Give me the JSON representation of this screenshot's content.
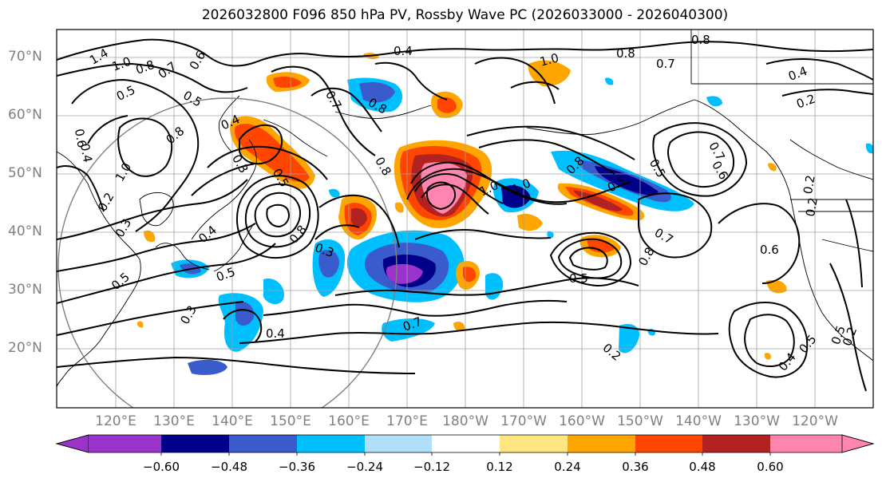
{
  "title": "2026032800 F096 850 hPa PV, Rossby Wave PC (2026033000 - 2026040300)",
  "lat_labels": [
    "70°N",
    "60°N",
    "50°N",
    "40°N",
    "30°N",
    "20°N"
  ],
  "lon_labels": [
    "120°E",
    "130°E",
    "140°E",
    "150°E",
    "160°E",
    "170°E",
    "180°W",
    "170°W",
    "160°W",
    "150°W",
    "140°W",
    "130°W",
    "120°W"
  ],
  "colorbar": {
    "ticks": [
      "−0.60",
      "−0.48",
      "−0.36",
      "−0.24",
      "−0.12",
      "0.12",
      "0.24",
      "0.36",
      "0.48",
      "0.60"
    ],
    "colors": [
      "#9933cc",
      "#00008b",
      "#3a5bcb",
      "#00bfff",
      "#b0e0fa",
      "#ffffff",
      "#ffe680",
      "#ffa500",
      "#ff4500",
      "#b22222",
      "#ff85b0"
    ]
  },
  "contour_labels": [
    "1.4",
    "1.0",
    "0.8",
    "0.7",
    "0.5",
    "0.6",
    "0.5",
    "0.6",
    "0.4",
    "0.8",
    "0.4",
    "0.2",
    "1.0",
    "0.4",
    "0.3",
    "0.7",
    "0.8",
    "0.4",
    "0.8",
    "0.5",
    "1.0",
    "0.3",
    "0.8",
    "0.5",
    "0.3",
    "0.3",
    "0.5",
    "0.4",
    "1.0",
    "0.8",
    "0.8",
    "0.7",
    "0.4",
    "0.2",
    "0.8",
    "1.0",
    "0.7",
    "0.5",
    "0.7",
    "0.6",
    "0.5",
    "0.8",
    "0.7",
    "0.5",
    "0.6",
    "0.2",
    "0.4",
    "0.5",
    "0.2",
    "0.2",
    "0.2",
    "0.5"
  ]
}
